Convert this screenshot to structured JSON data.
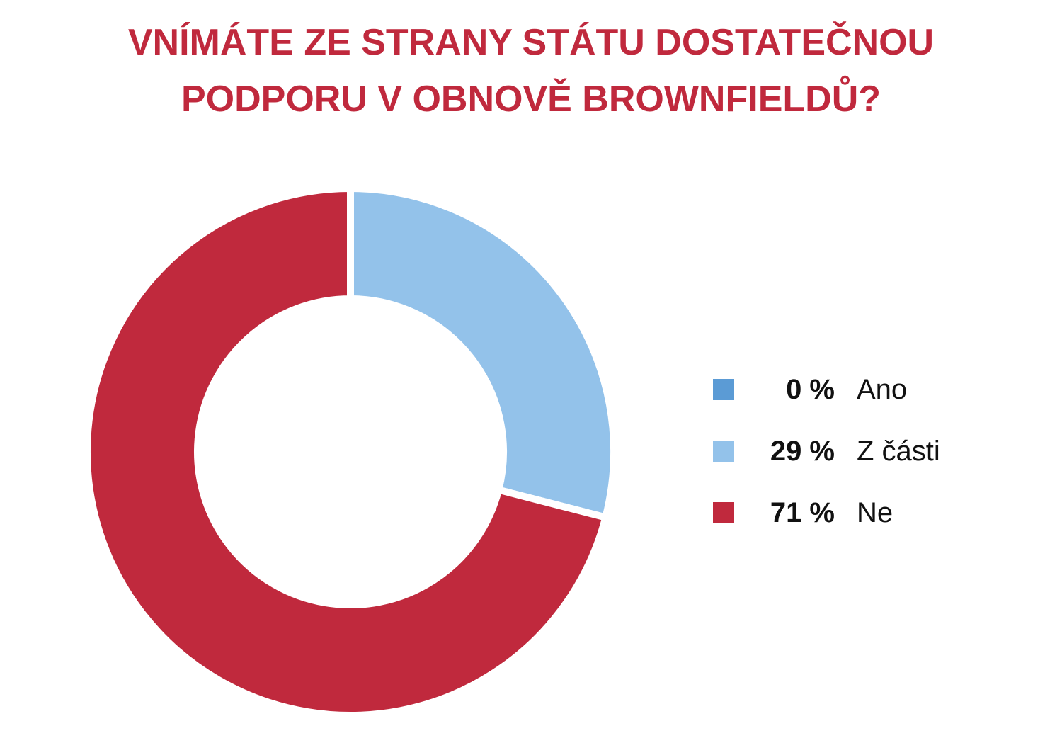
{
  "chart_data": {
    "type": "pie",
    "variant": "donut",
    "title_lines": [
      "VNÍMÁTE ZE STRANY STÁTU DOSTATEČNOU",
      "PODPORU V OBNOVĚ BROWNFIELDŮ?"
    ],
    "slices": [
      {
        "label": "Ano",
        "value": 0,
        "value_label": "0 %",
        "color": "#5b9bd5"
      },
      {
        "label": "Z části",
        "value": 29,
        "value_label": "29 %",
        "color": "#93c2ea"
      },
      {
        "label": "Ne",
        "value": 71,
        "value_label": "71 %",
        "color": "#c0293d"
      }
    ],
    "legend_position": "right"
  }
}
